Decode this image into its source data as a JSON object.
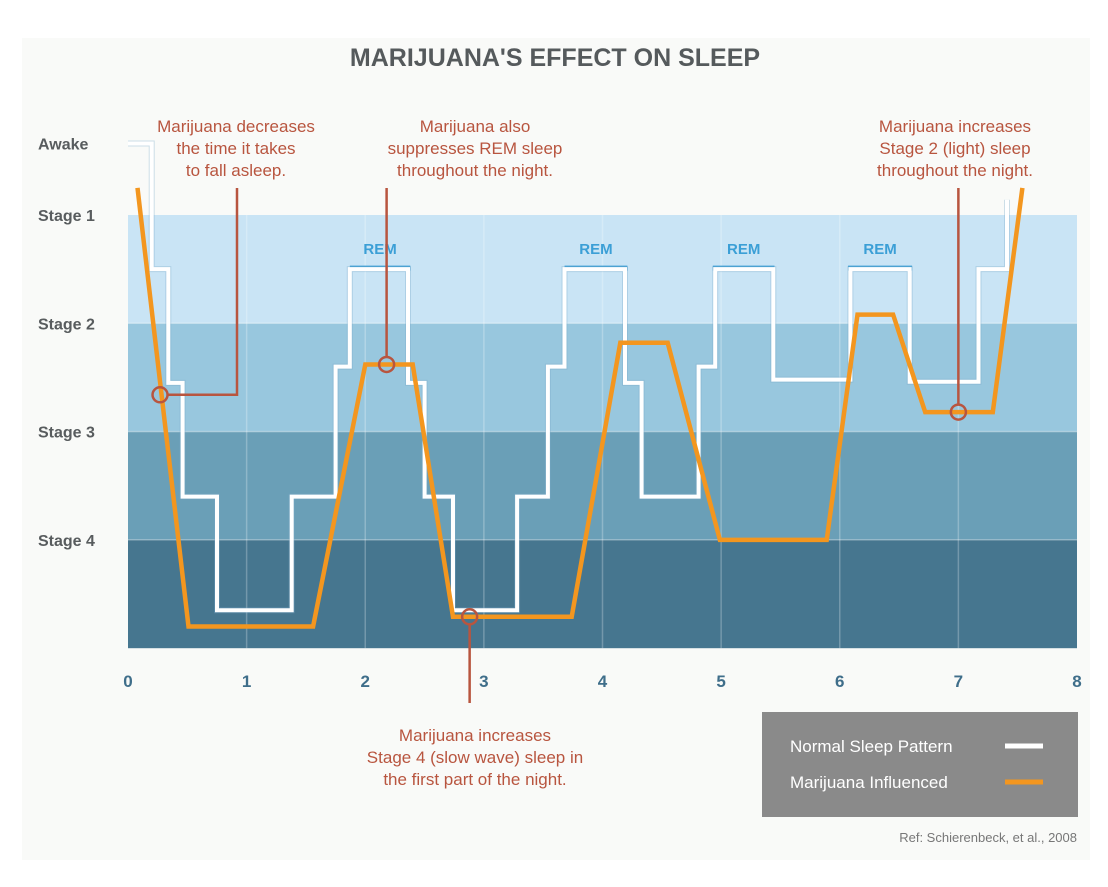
{
  "chart_data": {
    "type": "line",
    "title": "MARIJUANA'S EFFECT ON SLEEP",
    "xlabel": "",
    "ylabel": "",
    "xlim": [
      0,
      8
    ],
    "x_ticks": [
      "0",
      "1",
      "2",
      "3",
      "4",
      "5",
      "6",
      "7",
      "8"
    ],
    "y_ticks": [
      {
        "label": "Awake",
        "value": 0.34
      },
      {
        "label": "Stage 1",
        "value": 1
      },
      {
        "label": "Stage 2",
        "value": 2
      },
      {
        "label": "Stage 3",
        "value": 3
      },
      {
        "label": "Stage 4",
        "value": 4
      }
    ],
    "ylim": [
      0.34,
      5
    ],
    "bands": [
      {
        "from": 1,
        "to": 2,
        "color": "#c9e4f5"
      },
      {
        "from": 2,
        "to": 3,
        "color": "#98c7de"
      },
      {
        "from": 3,
        "to": 4,
        "color": "#6a9fb7"
      },
      {
        "from": 4,
        "to": 5,
        "color": "#46768f"
      }
    ],
    "series": [
      {
        "name": "Normal Sleep Pattern",
        "color": "#ffffff",
        "points": [
          [
            0,
            0.34
          ],
          [
            0.2,
            0.34
          ],
          [
            0.2,
            1.5
          ],
          [
            0.34,
            1.5
          ],
          [
            0.34,
            2.55
          ],
          [
            0.46,
            2.55
          ],
          [
            0.46,
            3.6
          ],
          [
            0.75,
            3.6
          ],
          [
            0.75,
            4.65
          ],
          [
            1.38,
            4.65
          ],
          [
            1.38,
            3.6
          ],
          [
            1.75,
            3.6
          ],
          [
            1.75,
            2.4
          ],
          [
            1.87,
            2.4
          ],
          [
            1.87,
            1.5
          ],
          [
            2.36,
            1.5
          ],
          [
            2.36,
            2.55
          ],
          [
            2.5,
            2.55
          ],
          [
            2.5,
            3.6
          ],
          [
            2.74,
            3.6
          ],
          [
            2.74,
            4.65
          ],
          [
            3.28,
            4.65
          ],
          [
            3.28,
            3.6
          ],
          [
            3.54,
            3.6
          ],
          [
            3.54,
            2.4
          ],
          [
            3.68,
            2.4
          ],
          [
            3.68,
            1.5
          ],
          [
            4.19,
            1.5
          ],
          [
            4.19,
            2.55
          ],
          [
            4.33,
            2.55
          ],
          [
            4.33,
            3.6
          ],
          [
            4.81,
            3.6
          ],
          [
            4.81,
            2.4
          ],
          [
            4.95,
            2.4
          ],
          [
            4.95,
            1.5
          ],
          [
            5.44,
            1.5
          ],
          [
            5.44,
            2.52
          ],
          [
            6.09,
            2.52
          ],
          [
            6.09,
            1.5
          ],
          [
            6.59,
            1.5
          ],
          [
            6.59,
            2.54
          ],
          [
            7.17,
            2.54
          ],
          [
            7.17,
            1.5
          ],
          [
            7.41,
            1.5
          ],
          [
            7.41,
            0.86
          ]
        ]
      },
      {
        "name": "Marijuana Influenced",
        "color": "#f3961f",
        "points": [
          [
            0.08,
            0.75
          ],
          [
            0.51,
            4.8
          ],
          [
            1.56,
            4.8
          ],
          [
            2.0,
            2.38
          ],
          [
            2.4,
            2.38
          ],
          [
            2.74,
            4.71
          ],
          [
            3.74,
            4.71
          ],
          [
            4.15,
            2.18
          ],
          [
            4.55,
            2.18
          ],
          [
            4.99,
            4.0
          ],
          [
            5.89,
            4.0
          ],
          [
            6.15,
            1.92
          ],
          [
            6.45,
            1.92
          ],
          [
            6.72,
            2.82
          ],
          [
            7.29,
            2.82
          ],
          [
            7.54,
            0.75
          ]
        ]
      }
    ],
    "rem_periods": [
      {
        "label": "REM",
        "start": 1.87,
        "end": 2.38
      },
      {
        "label": "REM",
        "start": 3.68,
        "end": 4.21
      },
      {
        "label": "REM",
        "start": 4.93,
        "end": 5.45
      },
      {
        "label": "REM",
        "start": 6.07,
        "end": 6.61
      }
    ],
    "annotations": [
      {
        "lines": [
          "Marijuana decreases",
          "the time it takes",
          "to fall asleep."
        ],
        "point": [
          0.27,
          2.66
        ]
      },
      {
        "lines": [
          "Marijuana also",
          "suppresses REM sleep",
          "throughout the night."
        ],
        "point": [
          2.18,
          2.38
        ]
      },
      {
        "lines": [
          "Marijuana increases",
          "Stage 4 (slow wave) sleep in",
          "the first part of the night."
        ],
        "point": [
          2.88,
          4.71
        ]
      },
      {
        "lines": [
          "Marijuana increases",
          "Stage 2 (light) sleep",
          "throughout the night."
        ],
        "point": [
          7.0,
          2.82
        ]
      }
    ],
    "legend": {
      "placement": "bottom-right",
      "entries": [
        "Normal Sleep Pattern",
        "Marijuana Influenced"
      ]
    },
    "reference": "Ref: Schierenbeck, et al., 2008",
    "annotation_color": "#b8553f",
    "rem_color": "#3b9fd6"
  }
}
